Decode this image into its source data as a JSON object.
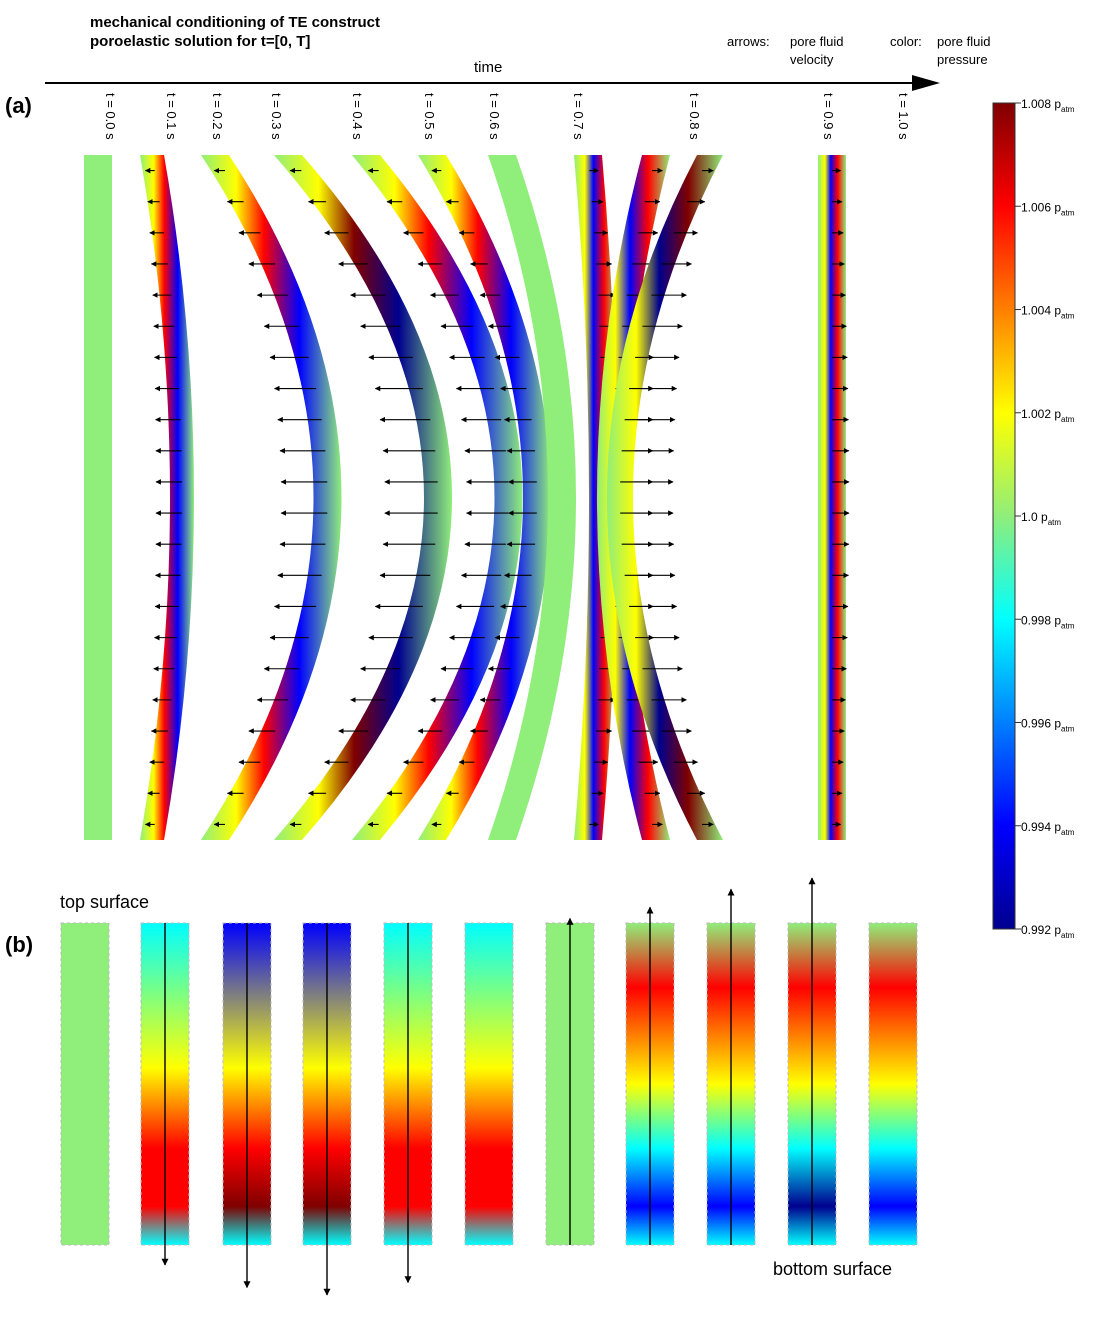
{
  "header": {
    "title_line1": "mechanical conditioning of TE construct",
    "title_line2": "poroelastic solution for t=[0, T]",
    "time_label": "time",
    "arrows_label": "arrows:",
    "arrows_desc_line1": "pore fluid",
    "arrows_desc_line2": "velocity",
    "color_label": "color:",
    "color_desc_line1": "pore fluid",
    "color_desc_line2": "pressure"
  },
  "panel_a": {
    "label": "(a)",
    "time_labels": [
      "t = 0.0 s",
      "t = 0.1 s",
      "t = 0.2 s",
      "t = 0.3 s",
      "t = 0.4 s",
      "t = 0.5 s",
      "t = 0.6 s",
      "t = 0.7 s",
      "t = 0.8 s",
      "t = 0.9 s",
      "t = 1.0 s"
    ],
    "bend": [
      0,
      0.2,
      0.75,
      1.0,
      0.95,
      0.7,
      0.4,
      0.1,
      -0.3,
      -0.6,
      0
    ],
    "intensity": [
      0,
      0.4,
      0.85,
      1.0,
      0.75,
      0.45,
      0.1,
      -0.35,
      -0.75,
      -1.0,
      -0.2
    ]
  },
  "panel_b": {
    "label": "(b)",
    "top_label": "top surface",
    "bottom_label": "bottom surface",
    "arrow_dir": [
      0,
      1,
      1,
      1,
      1,
      0,
      -1,
      -1,
      -1,
      -1,
      0
    ]
  },
  "colorbar": {
    "unit_base": "p",
    "unit_sub": "atm",
    "ticks": [
      "1.008",
      "1.006",
      "1.004",
      "1.002",
      "1.0",
      "0.998",
      "0.996",
      "0.994",
      "0.992"
    ]
  },
  "colors": {
    "jet": [
      "#00008f",
      "#0000ff",
      "#00ffff",
      "#ffff00",
      "#ff0000",
      "#800000"
    ],
    "neutral": "#90ee7a"
  }
}
